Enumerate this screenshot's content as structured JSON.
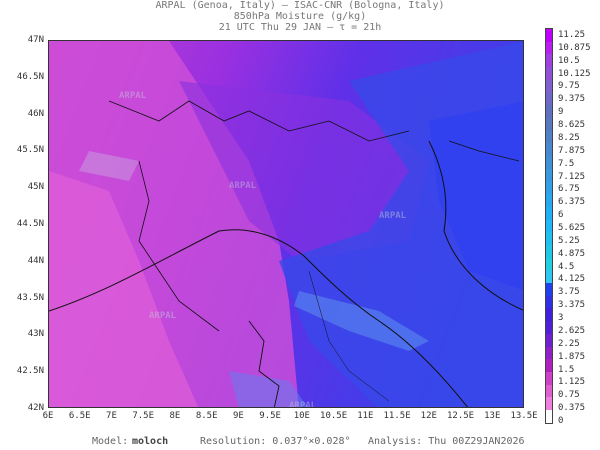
{
  "header": {
    "line1": "ARPAL (Genoa, Italy)  —  ISAC-CNR (Bologna, Italy)",
    "line2": "850hPa Moisture (g/kg)",
    "line3": "21 UTC Thu 29 JAN  —  τ = 21h"
  },
  "axes": {
    "lat_labels": [
      "47N",
      "46.5N",
      "46N",
      "45.5N",
      "45N",
      "44.5N",
      "44N",
      "43.5N",
      "43N",
      "42.5N",
      "42N"
    ],
    "lon_labels": [
      "6E",
      "6.5E",
      "7E",
      "7.5E",
      "8E",
      "8.5E",
      "9E",
      "9.5E",
      "10E",
      "10.5E",
      "11E",
      "11.5E",
      "12E",
      "12.5E",
      "13E",
      "13.5E"
    ],
    "lat_range": [
      42,
      47
    ],
    "lon_range": [
      6,
      13.5
    ]
  },
  "colorbar": {
    "labels": [
      "11.25",
      "10.875",
      "10.5",
      "10.125",
      "9.75",
      "9.375",
      "9",
      "8.625",
      "8.25",
      "7.875",
      "7.5",
      "7.125",
      "6.75",
      "6.375",
      "6",
      "5.625",
      "5.25",
      "4.875",
      "4.5",
      "4.125",
      "3.75",
      "3.375",
      "3",
      "2.625",
      "2.25",
      "1.875",
      "1.5",
      "1.125",
      "0.75",
      "0.375",
      "0"
    ],
    "colors": [
      "#c000ff",
      "#b820f0",
      "#a040e0",
      "#9050d8",
      "#8060d0",
      "#7068c8",
      "#6070c0",
      "#5878c0",
      "#5080c8",
      "#4888d0",
      "#4090d8",
      "#3898e0",
      "#30a0e8",
      "#28a8f0",
      "#20b0f8",
      "#20b8f8",
      "#20c0f0",
      "#20c8e8",
      "#20d0e0",
      "#30c8f0",
      "#2040f0",
      "#3030e8",
      "#4020e0",
      "#5020d8",
      "#7020d0",
      "#9020c8",
      "#b020c0",
      "#d040c8",
      "#e060d0",
      "#f080e0",
      "#ffffff"
    ]
  },
  "footer": {
    "model_label": "Model:",
    "model_value": "moloch",
    "resolution": "Resolution: 0.037°×0.028°",
    "analysis": "Analysis: Thu 00Z29JAN2026"
  },
  "watermark": "ARPAL"
}
